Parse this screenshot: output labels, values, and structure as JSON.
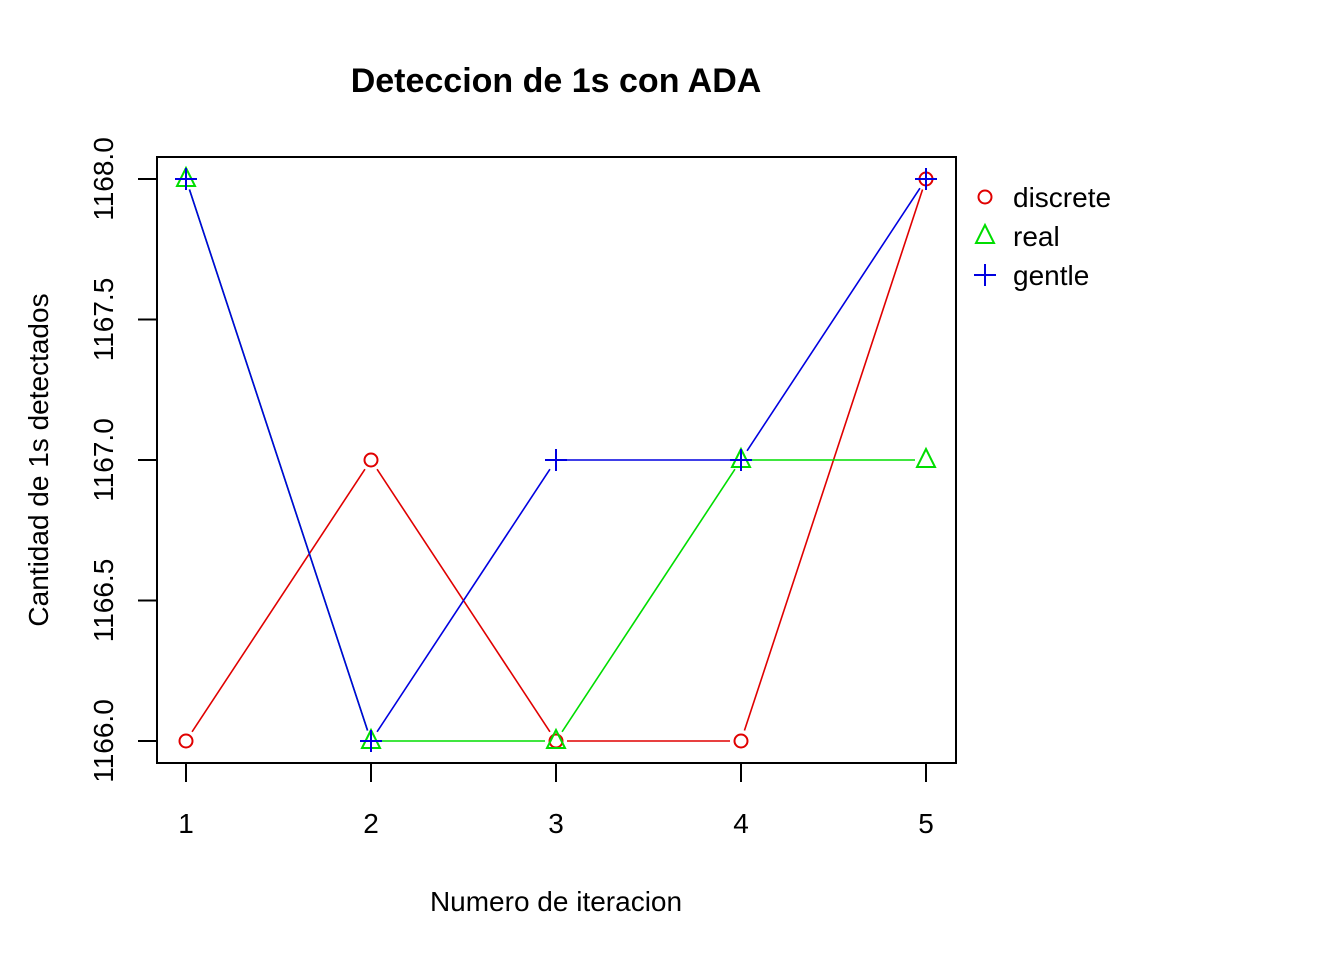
{
  "chart_data": {
    "type": "line",
    "title": "Deteccion de 1s con ADA",
    "xlabel": "Numero de iteracion",
    "ylabel": "Cantidad de 1s  detectados",
    "x": [
      1,
      2,
      3,
      4,
      5
    ],
    "x_ticks": [
      "1",
      "2",
      "3",
      "4",
      "5"
    ],
    "y_ticks": [
      "1166.0",
      "1166.5",
      "1167.0",
      "1167.5",
      "1168.0"
    ],
    "xlim": [
      1,
      5
    ],
    "ylim": [
      1166,
      1168
    ],
    "grid": false,
    "legend_position": "right",
    "series": [
      {
        "name": "discrete",
        "color": "#e00000",
        "marker": "circle",
        "values": [
          1166,
          1167,
          1166,
          1166,
          1168
        ]
      },
      {
        "name": "real",
        "color": "#00dd00",
        "marker": "triangle",
        "values": [
          1168,
          1166,
          1166,
          1167,
          1167
        ]
      },
      {
        "name": "gentle",
        "color": "#0000e0",
        "marker": "plus",
        "values": [
          1168,
          1166,
          1167,
          1167,
          1168
        ]
      }
    ]
  }
}
